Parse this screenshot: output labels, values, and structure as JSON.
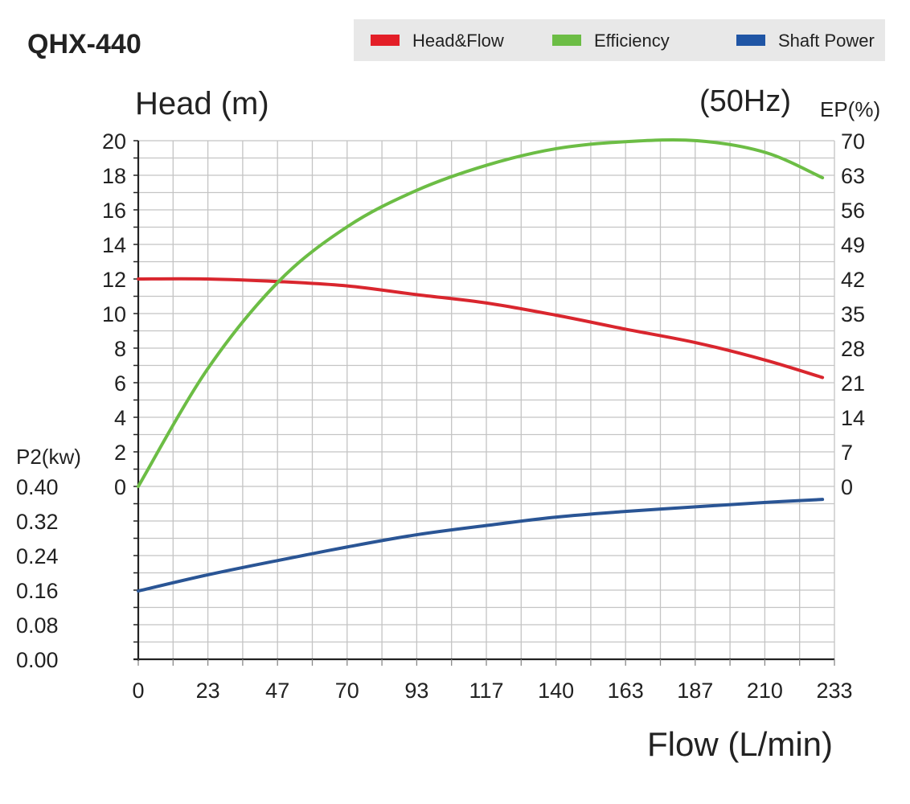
{
  "chart_data": {
    "type": "line",
    "title": "QHX-440",
    "subtitle": "(50Hz)",
    "xlabel": "Flow (L/min)",
    "ylabel_left": "Head (m)",
    "ylabel_right": "EP(%)",
    "ylabel_power": "P2(kw)",
    "x_ticks": [
      "0",
      "23",
      "47",
      "70",
      "93",
      "117",
      "140",
      "163",
      "187",
      "210",
      "233"
    ],
    "xlim": [
      0,
      233
    ],
    "head_ticks": [
      "20",
      "18",
      "16",
      "14",
      "12",
      "10",
      "8",
      "6",
      "4",
      "2",
      "0"
    ],
    "head_lim": [
      0,
      20
    ],
    "ep_ticks": [
      "70",
      "63",
      "56",
      "49",
      "42",
      "35",
      "28",
      "21",
      "14",
      "7",
      "0"
    ],
    "ep_lim": [
      0,
      70
    ],
    "power_ticks": [
      "0.40",
      "0.32",
      "0.24",
      "0.16",
      "0.08",
      "0.00"
    ],
    "power_lim": [
      0,
      0.4
    ],
    "grid": true,
    "legend_position": "top-right",
    "x": [
      0,
      23,
      47,
      70,
      93,
      117,
      140,
      163,
      187,
      210,
      229
    ],
    "series": [
      {
        "name": "Head&Flow",
        "axis": "head",
        "color": "#d9262e",
        "values": [
          12.0,
          12.0,
          11.85,
          11.6,
          11.1,
          10.6,
          9.9,
          9.1,
          8.3,
          7.3,
          6.3
        ]
      },
      {
        "name": "Efficiency",
        "axis": "ep",
        "color": "#6cbd45",
        "values": [
          0,
          23.6,
          41.5,
          52.6,
          59.9,
          65.1,
          68.4,
          69.8,
          70.0,
          67.6,
          62.5
        ]
      },
      {
        "name": "Shaft Power",
        "axis": "power",
        "color": "#2a5595",
        "values": [
          0.158,
          0.195,
          0.229,
          0.26,
          0.288,
          0.31,
          0.329,
          0.342,
          0.353,
          0.363,
          0.37
        ]
      }
    ]
  },
  "legend": {
    "items": [
      {
        "label": "Head&Flow",
        "color": "#e31e27"
      },
      {
        "label": "Efficiency",
        "color": "#6cbd45"
      },
      {
        "label": "Shaft Power",
        "color": "#1f55a5"
      }
    ]
  }
}
